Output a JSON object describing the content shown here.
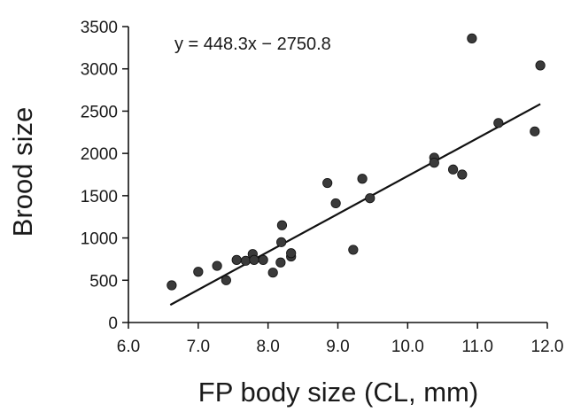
{
  "chart_data": {
    "type": "scatter",
    "title": "",
    "xlabel": "FP body size (CL, mm)",
    "ylabel": "Brood size",
    "xlim": [
      6.0,
      12.0
    ],
    "ylim": [
      0,
      3500
    ],
    "x_ticks": [
      "6.0",
      "7.0",
      "8.0",
      "9.0",
      "10.0",
      "11.0",
      "12.0"
    ],
    "y_ticks": [
      "0",
      "500",
      "1000",
      "1500",
      "2000",
      "2500",
      "3000",
      "3500"
    ],
    "grid": false,
    "legend": "none",
    "equation": "y = 448.3x − 2750.8",
    "trendline": {
      "slope": 448.3,
      "intercept": -2750.8,
      "x_range": [
        6.6,
        11.9
      ]
    },
    "point_color": "#3a3a3a",
    "line_color": "#111111",
    "points": [
      {
        "x": 6.62,
        "y": 440
      },
      {
        "x": 7.0,
        "y": 600
      },
      {
        "x": 7.27,
        "y": 670
      },
      {
        "x": 7.4,
        "y": 500
      },
      {
        "x": 7.55,
        "y": 740
      },
      {
        "x": 7.68,
        "y": 730
      },
      {
        "x": 7.78,
        "y": 810
      },
      {
        "x": 7.8,
        "y": 740
      },
      {
        "x": 7.93,
        "y": 740
      },
      {
        "x": 8.07,
        "y": 590
      },
      {
        "x": 8.18,
        "y": 710
      },
      {
        "x": 8.19,
        "y": 950
      },
      {
        "x": 8.2,
        "y": 1150
      },
      {
        "x": 8.33,
        "y": 780
      },
      {
        "x": 8.33,
        "y": 820
      },
      {
        "x": 8.85,
        "y": 1650
      },
      {
        "x": 8.97,
        "y": 1410
      },
      {
        "x": 9.22,
        "y": 860
      },
      {
        "x": 9.35,
        "y": 1700
      },
      {
        "x": 9.46,
        "y": 1470
      },
      {
        "x": 10.38,
        "y": 1950
      },
      {
        "x": 10.38,
        "y": 1890
      },
      {
        "x": 10.65,
        "y": 1810
      },
      {
        "x": 10.78,
        "y": 1750
      },
      {
        "x": 10.92,
        "y": 3360
      },
      {
        "x": 11.3,
        "y": 2360
      },
      {
        "x": 11.82,
        "y": 2260
      },
      {
        "x": 11.9,
        "y": 3040
      }
    ]
  }
}
